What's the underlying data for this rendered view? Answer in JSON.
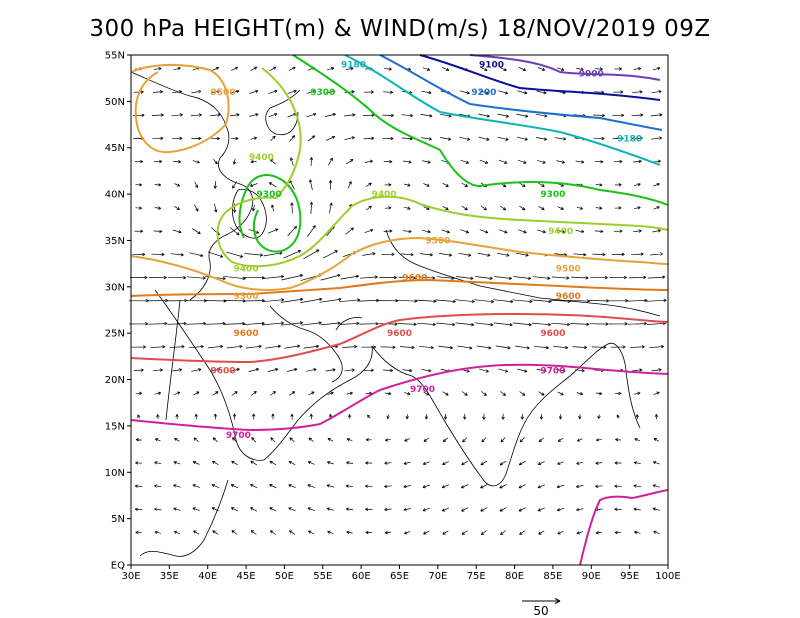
{
  "title": "300 hPa HEIGHT(m) & WIND(m/s) 18/NOV/2019 09Z",
  "map": {
    "lon_range": [
      30,
      100
    ],
    "lat_range": [
      0,
      55
    ],
    "lat_labels": [
      "55N",
      "50N",
      "45N",
      "40N",
      "35N",
      "30N",
      "25N",
      "20N",
      "15N",
      "10N",
      "5N",
      "EQ"
    ],
    "lon_labels": [
      "30E",
      "35E",
      "40E",
      "45E",
      "50E",
      "55E",
      "60E",
      "65E",
      "70E",
      "75E",
      "80E",
      "85E",
      "90E",
      "95E",
      "100E"
    ],
    "reference_vector": {
      "label": "50",
      "value": 50
    }
  },
  "contours": [
    {
      "level": "9100",
      "color": "#0f0f9e",
      "labels": [
        {
          "lon": 77,
          "lat": 54
        }
      ]
    },
    {
      "level": "9000",
      "color": "#6a3fb8",
      "labels": [
        {
          "lon": 90,
          "lat": 53
        }
      ]
    },
    {
      "level": "9200",
      "color": "#1f6fd1",
      "labels": [
        {
          "lon": 76,
          "lat": 51
        }
      ]
    },
    {
      "level": "9180",
      "color": "#0fb3b3",
      "labels": [
        {
          "lon": 59,
          "lat": 54
        },
        {
          "lon": 95,
          "lat": 46
        }
      ]
    },
    {
      "level": "9300",
      "color": "#19c219",
      "labels": [
        {
          "lon": 55,
          "lat": 51
        },
        {
          "lon": 48,
          "lat": 40
        },
        {
          "lon": 85,
          "lat": 40
        }
      ]
    },
    {
      "level": "9400",
      "color": "#9dcf2a",
      "labels": [
        {
          "lon": 47,
          "lat": 44
        },
        {
          "lon": 63,
          "lat": 40
        },
        {
          "lon": 45,
          "lat": 32
        },
        {
          "lon": 86,
          "lat": 36
        }
      ]
    },
    {
      "level": "9500",
      "color": "#e6a23c",
      "labels": [
        {
          "lon": 42,
          "lat": 51
        },
        {
          "lon": 70,
          "lat": 35
        },
        {
          "lon": 45,
          "lat": 29
        },
        {
          "lon": 87,
          "lat": 32
        }
      ]
    },
    {
      "level": "9600",
      "color": "#e07a1f",
      "labels": [
        {
          "lon": 45,
          "lat": 25
        },
        {
          "lon": 67,
          "lat": 31
        },
        {
          "lon": 87,
          "lat": 29
        }
      ]
    },
    {
      "level": "9600",
      "color": "#e14c4c",
      "labels": [
        {
          "lon": 42,
          "lat": 21
        },
        {
          "lon": 65,
          "lat": 25
        },
        {
          "lon": 85,
          "lat": 25
        }
      ]
    },
    {
      "level": "9700",
      "color": "#d11f9e",
      "labels": [
        {
          "lon": 44,
          "lat": 14
        },
        {
          "lon": 68,
          "lat": 19
        },
        {
          "lon": 85,
          "lat": 21
        }
      ]
    }
  ]
}
